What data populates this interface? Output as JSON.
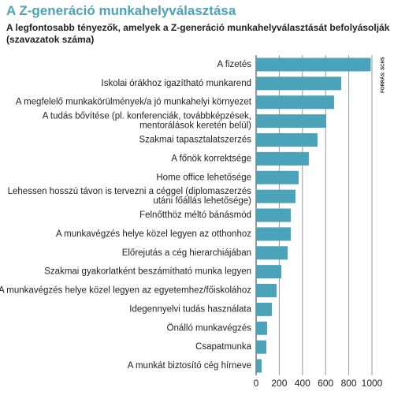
{
  "chart_data": {
    "type": "bar",
    "orientation": "horizontal",
    "title": "A Z-generáció munkahelyválasztása",
    "subtitle": "A legfontosabb tényezők, amelyek a  Z-generáció munkahelyválasztását befolyásolják\n(szavazatok száma)",
    "source": "FORRÁS: SCHS",
    "categories": [
      "A fizetés",
      "Iskolai órákhoz igazítható munkarend",
      "A megfelelő munkakörülmények/a jó munkahelyi környezet",
      "A tudás bővítése (pl. konferenciák, továbbképzések,\nmentorálások keretén belül)",
      "Szakmai tapasztalatszerzés",
      "A főnök korrektsége",
      "Home office lehetősége",
      "Lehessen hosszú távon is tervezni a céggel (diplomaszerzés\nutáni főállás lehetősége)",
      "Felnőtthöz méltó bánásmód",
      "A munkavégzés helye közel legyen az otthonhoz",
      "Előrejutás a cég hierarchiájában",
      "Szakmai gyakorlatként beszámítható munka legyen",
      "A munkavégzés helye közel legyen az egyetemhez/főiskolához",
      "Idegennyelvi tudás használata",
      "Önálló munkavégzés",
      "Csapatmunka",
      "A munkát biztosító cég hírneve"
    ],
    "values": [
      990,
      735,
      673,
      605,
      530,
      455,
      367,
      340,
      300,
      300,
      272,
      218,
      177,
      136,
      95,
      88,
      48
    ],
    "color": "#4aa3b8",
    "xlim": [
      0,
      1000
    ],
    "xticks": [
      0,
      200,
      400,
      600,
      800,
      1000
    ],
    "grid": true
  }
}
